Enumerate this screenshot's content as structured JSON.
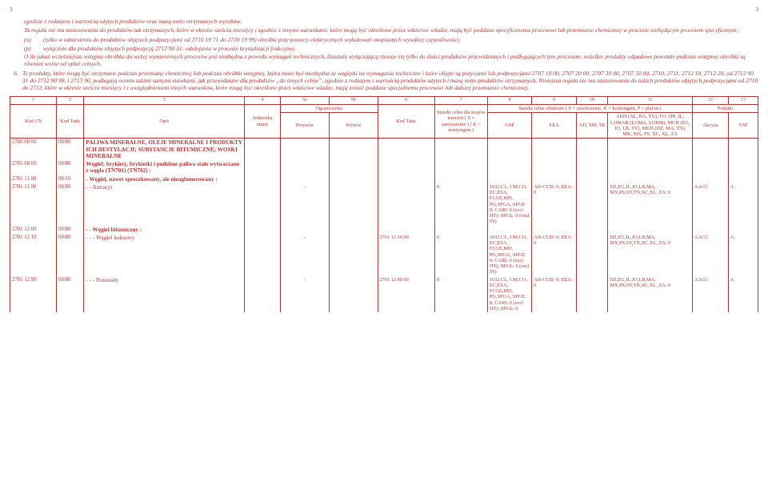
{
  "page_number_left": "3",
  "page_number_right": "3",
  "intro_para1": "zgodnie z rodzajem i wartością użytych produktów oraz masą netto otrzymanych wyrobów.",
  "intro_para2": "Ta reguła nie ma zastosowania do produktów tak otrzymanych, które w okresie sześciu miesięcy i zgodnie z innymi warunkami, które mogą być określone przez właściwe władze, mają być poddane specyficznemu procesowi lub przemianie chemicznej w procesie niebędącym procesem specyficznym;",
  "item_o_label": "(o)",
  "item_o_text": "(tylko w odniesieniu do produktów objętych podpozycjami od 2710 19 71 do 2710 19 99) obróbki przy pomocy elektrycznych wyładowań snopiastych wysokiej częstotliwości;",
  "item_p_label": "(p)",
  "item_p_text": "wyłącznie dla produktów objętych podpozycją 2712 90 31: odolejania w procesie krystalizacji frakcyjnej.",
  "para_after_op": "O ile jakaś wcześniejsza wstępna obróbka do wyżej wymienionych procesów jest niezbędna z powodu wymagań technicznych, klauzulę wyłączającą stosuje się tylko do ilości produktów przewidzianych i podlegających tym procesom; wszelkie produkty odpadowe powstałe podczas wstępnej obróbki są również wolne od opłat celnych.",
  "item6_label": "6.",
  "item6_text": "Te produkty, które mogą być otrzymane podczas przemiany chemicznej lub podczas obróbki wstępnej, która może być niezbędna ze względu na wymagania techniczne i które objęte są pozycjami lub podpozycjami 2707 10 00, 2707 20 00, 2707 30 00, 2707 50 00, 2710, 2711, 2712 10, 2712 20, od 2712 90 31 do 2712 90 99, i 2713 90, podlegają oceniu takimi samymi stawkami, jak przewidziane dla produktów „do innych celów”, zgodnie z rodzajem i wartością produktów użytych i masą netto produktów otrzymanych. Niniejsza reguła nie ma zastosowania do takich produktów objętych podpozycjami od 2710 do 2712, które w okresie sześciu miesięcy i z uwzględnieniem innych warunków, które mogą być określone przez właściwe władze, mają zostać poddane specjalnemu procesowi lub dalszej przemianie chemicznej.",
  "headers": {
    "c1": "1",
    "c2": "2",
    "c3": "3",
    "c4": "4",
    "c5a": "5a",
    "c5b": "5b",
    "c6": "6",
    "c7": "7",
    "c8": "8",
    "c9": "9",
    "c10": "10",
    "c11": "11",
    "c12": "12",
    "c13": "13",
    "ograniczenia": "Ograniczenia",
    "stawki_obn": "Stawki celne obniżone ( S = zawieszenie, K = kontyngent, P = plafon )",
    "podatki": "Podatki",
    "kod_cn": "Kod CN",
    "kod_taric": "Kod Taric",
    "opis": "Opis",
    "jm": "Jednostka miary",
    "przywoz": "Przywóz",
    "wywoz": "Wywóz",
    "kod_taric2": "Kod Taric",
    "stawki_kt": "Stawki celne dla krajów trzecich\n( S = zawieszenie )\n( K = kontyngent )",
    "gsp": "GSP",
    "eea": "EEA",
    "ad": "AD,\nSM, TR",
    "footnote11": "ABH (AL, BA, YU), FO, HR, IL, LOMAB (LOMA, LOMB), MCH (EG, JO, LB, SY), MGB (DZ, MA, TN), MK, MX, PS, XC, XL, ZA",
    "akcyza": "Akcyza",
    "vat": "VAT"
  },
  "rows": [
    {
      "cn": "2700 00 00",
      "taric": "00/80",
      "opis": "PALIWA MINERALNE, OLEJE MINERALNE I PRODUKTY ICH DESTYLACJI; SUBSTANCJE BITUMICZNE; WOSKI MINERALNE",
      "bold": true
    },
    {
      "cn": "2701 00 00",
      "taric": "00/80",
      "opis": "Węgiel; brykiety, brykietki i podobne paliwa stałe wytwarzane z węgla (TN701) (TN702) :",
      "bold": true
    },
    {
      "cn": "2701 11 00",
      "taric": "00/10",
      "opis": "- Węgiel, nawet sproszkowany, ale nieaglomerowany :",
      "bold": true
    },
    {
      "cn": "2701 11 00",
      "taric": "00/80",
      "opis": "- - Antracyt",
      "przywoz": "-",
      "col7": "0",
      "col8": "1032.CL, CM,CO, EC,ESA, FJ,GE,MD, PG,SPGA, SPGE: 0; CARI: 0 (excl HT); SPGL: 0 (excl IN)",
      "col9": "AD-CUD: 0; EEA: 0",
      "col11": "DZ,EG,IL,JO,LB,MA, MX,PS,SY,TN,XC,XL, ZA: 0",
      "col12": "AACC",
      "col13": "A"
    },
    {
      "cn": "2701 12 00",
      "taric": "00/80",
      "opis": "- - Węgiel bitumiczny :",
      "bold": true
    },
    {
      "cn": "2701 12 10",
      "taric": "00/80",
      "opis": "- - - Węgiel koksowy",
      "przywoz": "-",
      "col6": "2701 12 10 00",
      "col7": "0",
      "col8": "1032.CL, CM,CO, EC,ESA, FJ,GE,MD, PG,SPGA, SPGE: 0; CARI: 0 (excl HT); SPGL: 0 (excl IN)",
      "col9": "AD-CUD: 0; EEA: 0",
      "col11": "DZ,EG,IL,JO,LB,MA, MX,PS,SY,TN,XC,XL, ZA: 0",
      "col12": "AACC",
      "col13": "A"
    },
    {
      "cn": "2701 12 90",
      "taric": "00/80",
      "opis": "- - - Pozostały",
      "przywoz": "-",
      "col6": "2701 12 90 00",
      "col7": "0",
      "col8": "1032.CL, CM,CO, EC,ESA, FJ,GE,MD, PG,SPGA, SPGE: 0; CARI: 0 (excl HT); SPGL: 0",
      "col9": "AD-CUD: 0; EEA: 0",
      "col11": "DZ,EG,IL,JO,LB,MA, MX,PS,SY,TN,XC,XL, ZA: 0",
      "col12": "AACC",
      "col13": "A"
    }
  ]
}
